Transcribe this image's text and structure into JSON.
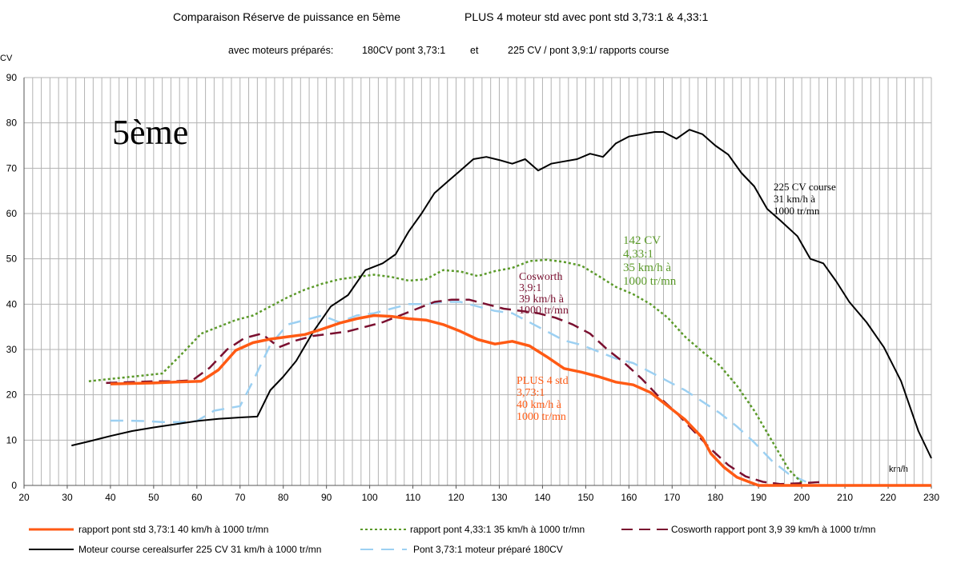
{
  "chart_data": {
    "type": "line",
    "title_line1_left": "Comparaison Réserve de puissance en 5ème",
    "title_line1_right": "PLUS 4 moteur std avec pont  std 3,73:1 & 4,33:1",
    "title_line2_left": "avec moteurs préparés:",
    "title_line2_mid": "180CV pont 3,73:1",
    "title_line2_et": "et",
    "title_line2_right": "225 CV / pont 3,9:1/ rapports course",
    "ylabel": "CV",
    "xlabel": "km/h",
    "gear_label": "5ème",
    "xlim": [
      20,
      230
    ],
    "ylim": [
      0,
      90
    ],
    "x_ticks": [
      20,
      30,
      40,
      50,
      60,
      70,
      80,
      90,
      100,
      110,
      120,
      130,
      140,
      150,
      160,
      170,
      180,
      190,
      200,
      210,
      220,
      230
    ],
    "y_ticks": [
      0,
      10,
      20,
      30,
      40,
      50,
      60,
      70,
      80,
      90
    ],
    "grid": "vertical every 2 km/h, horizontal every 10 CV",
    "series": [
      {
        "name": "rapport pont std 3,73:1  40 km/h à 1000 tr/mn",
        "color": "#ff5a14",
        "style": "solid-thick",
        "x": [
          40,
          45,
          50,
          55,
          61,
          65,
          69,
          73,
          77,
          81,
          85,
          89,
          93,
          97,
          101,
          105,
          109,
          113,
          117,
          121,
          125,
          129,
          133,
          137,
          141,
          145,
          149,
          153,
          157,
          161,
          165,
          169,
          173,
          177,
          179,
          182,
          185,
          188,
          190,
          195,
          200,
          210,
          220,
          230
        ],
        "values": [
          22.4,
          22.5,
          22.6,
          22.8,
          23.0,
          25.5,
          29.8,
          31.5,
          32.3,
          32.8,
          33.3,
          34.5,
          35.8,
          36.8,
          37.5,
          37.3,
          36.8,
          36.5,
          35.5,
          34.0,
          32.2,
          31.2,
          31.8,
          30.8,
          28.4,
          25.8,
          25.0,
          24.0,
          22.8,
          22.2,
          20.5,
          17.5,
          14.5,
          10.5,
          7.0,
          4.0,
          1.8,
          0.7,
          0,
          0,
          0,
          0,
          0,
          0
        ]
      },
      {
        "name": "rapport pont  4,33:1  35 km/h à 1000 tr/mn",
        "color": "#5b9a2a",
        "style": "dotted",
        "x": [
          35,
          40,
          45,
          52,
          56,
          61,
          65,
          69,
          73,
          77,
          81,
          85,
          89,
          93,
          97,
          101,
          105,
          109,
          113,
          117,
          121,
          125,
          129,
          133,
          137,
          141,
          145,
          149,
          153,
          157,
          161,
          165,
          169,
          173,
          177,
          181,
          185,
          189,
          193,
          197,
          200
        ],
        "values": [
          23.0,
          23.5,
          24.0,
          24.7,
          28.5,
          33.5,
          35.0,
          36.5,
          37.5,
          39.5,
          41.5,
          43.2,
          44.5,
          45.5,
          46.0,
          46.5,
          46.0,
          45.2,
          45.5,
          47.5,
          47.2,
          46.2,
          47.3,
          48.0,
          49.5,
          49.8,
          49.3,
          48.5,
          46.2,
          43.8,
          42.2,
          40.0,
          37.0,
          32.8,
          29.5,
          26.5,
          22.0,
          16.5,
          10.0,
          3.5,
          0.6
        ]
      },
      {
        "name": "Cosworth rapport pont 3,9  39 km/h à 1000 tr/mn",
        "color": "#7a1030",
        "style": "dashed",
        "x": [
          39,
          45,
          51,
          55,
          59,
          63,
          67,
          71,
          75,
          79,
          83,
          87,
          91,
          95,
          99,
          103,
          107,
          111,
          115,
          119,
          123,
          127,
          131,
          135,
          139,
          143,
          147,
          151,
          155,
          159,
          163,
          167,
          171,
          175,
          179,
          183,
          187,
          191,
          195,
          200,
          205
        ],
        "values": [
          22.6,
          22.8,
          23.0,
          23.0,
          23.2,
          26.0,
          30.0,
          32.5,
          33.5,
          30.5,
          32.0,
          33.0,
          33.5,
          34.0,
          35.0,
          36.0,
          37.5,
          39.0,
          40.5,
          41.0,
          41.0,
          40.0,
          39.0,
          38.5,
          38.0,
          37.0,
          35.5,
          33.5,
          30.0,
          27.0,
          23.5,
          19.5,
          16.0,
          12.0,
          8.0,
          4.5,
          2.0,
          0.8,
          0.3,
          0.5,
          0.8
        ]
      },
      {
        "name": "Moteur course cerealsurfer 225 CV   31 km/h à 1000 tr/mn",
        "color": "#000000",
        "style": "solid",
        "x": [
          31,
          35,
          40,
          45,
          50,
          55,
          60,
          65,
          70,
          74,
          77,
          80,
          83,
          87,
          91,
          95,
          99,
          103,
          106,
          109,
          112,
          115,
          118,
          121,
          124,
          127,
          130,
          133,
          136,
          139,
          142,
          145,
          148,
          151,
          154,
          157,
          160,
          163,
          166,
          168,
          171,
          174,
          177,
          180,
          183,
          186,
          189,
          192,
          195,
          199,
          202,
          205,
          208,
          211,
          215,
          219,
          223,
          227,
          230
        ],
        "values": [
          8.8,
          9.7,
          10.9,
          12.0,
          12.8,
          13.5,
          14.2,
          14.7,
          15.0,
          15.2,
          21.0,
          24.0,
          27.5,
          34.0,
          39.5,
          42.0,
          47.5,
          49.0,
          51.0,
          56.0,
          60.0,
          64.5,
          67.0,
          69.5,
          72.0,
          72.5,
          71.8,
          71.0,
          72.0,
          69.5,
          71.0,
          71.5,
          72.0,
          73.2,
          72.5,
          75.5,
          77.0,
          77.5,
          78.0,
          78.0,
          76.5,
          78.5,
          77.5,
          75.0,
          73.0,
          69.0,
          66.0,
          61.0,
          58.5,
          55.0,
          50.0,
          49.0,
          45.0,
          40.5,
          36.0,
          30.5,
          23.0,
          12.0,
          6.0
        ]
      },
      {
        "name": "Pont 3,73:1   moteur préparé 180CV",
        "color": "#9cd0f2",
        "style": "long-dash",
        "x": [
          40,
          44,
          48,
          52,
          56,
          60,
          64,
          67,
          70,
          73,
          77,
          81,
          85,
          89,
          93,
          97,
          101,
          105,
          109,
          113,
          117,
          121,
          125,
          129,
          133,
          137,
          141,
          145,
          149,
          153,
          157,
          161,
          165,
          169,
          173,
          177,
          181,
          185,
          189,
          193,
          197,
          201
        ],
        "values": [
          14.3,
          14.3,
          14.2,
          14.0,
          14.0,
          14.2,
          16.5,
          17.0,
          17.5,
          23.0,
          31.0,
          35.5,
          36.5,
          37.5,
          36.0,
          37.5,
          38.0,
          39.0,
          40.0,
          40.0,
          40.5,
          40.5,
          39.5,
          38.5,
          38.0,
          36.0,
          34.0,
          32.0,
          31.0,
          29.5,
          28.0,
          27.0,
          25.0,
          23.0,
          21.0,
          18.5,
          16.0,
          13.0,
          9.5,
          5.5,
          2.5,
          0.8
        ]
      }
    ],
    "annotations": {
      "course": [
        "225 CV course",
        "31 km/h à",
        " 1000 tr/mn"
      ],
      "cv142": [
        "142 CV",
        "4,33:1",
        "35 km/h à",
        " 1000 tr/mn"
      ],
      "cosworth": [
        "Cosworth",
        "3,9:1",
        "39 km/h à",
        " 1000 tr/mn"
      ],
      "plus4": [
        "PLUS 4 std",
        "3,73:1",
        "40 km/h à",
        " 1000 tr/mn"
      ]
    }
  }
}
